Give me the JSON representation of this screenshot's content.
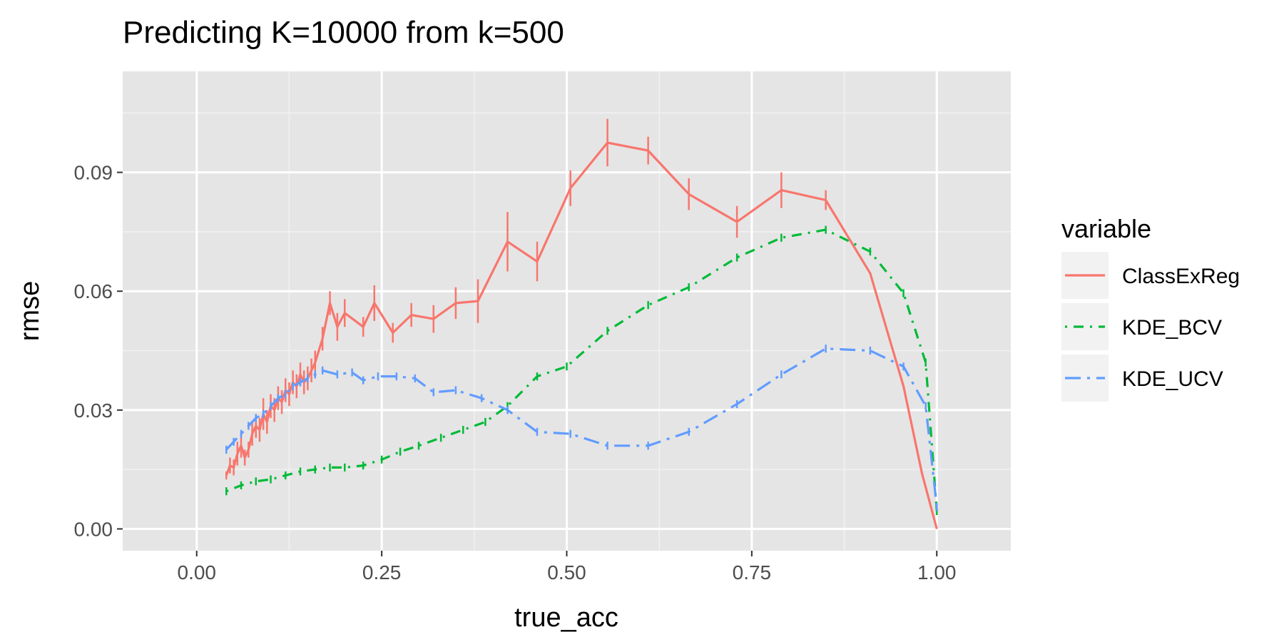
{
  "chart_data": {
    "type": "line",
    "title": "Predicting K=10000 from k=500",
    "xlabel": "true_acc",
    "ylabel": "rmse",
    "xlim": [
      -0.1,
      1.1
    ],
    "ylim": [
      -0.0055,
      0.1155
    ],
    "x_ticks": [
      0.0,
      0.25,
      0.5,
      0.75,
      1.0
    ],
    "x_tick_labels": [
      "0.00",
      "0.25",
      "0.50",
      "0.75",
      "1.00"
    ],
    "y_ticks": [
      0.0,
      0.03,
      0.06,
      0.09
    ],
    "y_tick_labels": [
      "0.00",
      "0.03",
      "0.06",
      "0.09"
    ],
    "grid": true,
    "background": "#e5e5e5",
    "legend": {
      "title": "variable",
      "position": "right"
    },
    "series": [
      {
        "name": "ClassExReg",
        "color": "#f8766d",
        "dash": "solid",
        "x": [
          0.04,
          0.045,
          0.05,
          0.055,
          0.06,
          0.065,
          0.07,
          0.075,
          0.08,
          0.085,
          0.09,
          0.095,
          0.1,
          0.105,
          0.11,
          0.115,
          0.12,
          0.125,
          0.13,
          0.135,
          0.14,
          0.145,
          0.15,
          0.155,
          0.16,
          0.17,
          0.18,
          0.19,
          0.2,
          0.225,
          0.24,
          0.265,
          0.29,
          0.32,
          0.35,
          0.38,
          0.42,
          0.46,
          0.505,
          0.555,
          0.61,
          0.665,
          0.73,
          0.79,
          0.85,
          0.91,
          0.955,
          0.98,
          1.0
        ],
        "y": [
          0.0135,
          0.016,
          0.0155,
          0.019,
          0.021,
          0.018,
          0.02,
          0.024,
          0.026,
          0.025,
          0.029,
          0.027,
          0.031,
          0.03,
          0.033,
          0.032,
          0.035,
          0.034,
          0.037,
          0.036,
          0.039,
          0.037,
          0.038,
          0.04,
          0.042,
          0.048,
          0.057,
          0.051,
          0.0545,
          0.051,
          0.057,
          0.0495,
          0.054,
          0.053,
          0.057,
          0.0575,
          0.0725,
          0.0675,
          0.086,
          0.0975,
          0.0955,
          0.0845,
          0.0775,
          0.0855,
          0.083,
          0.0645,
          0.036,
          0.014,
          0.0
        ],
        "err": [
          0.001,
          0.002,
          0.002,
          0.003,
          0.003,
          0.002,
          0.002,
          0.003,
          0.003,
          0.003,
          0.004,
          0.003,
          0.003,
          0.003,
          0.003,
          0.003,
          0.003,
          0.003,
          0.003,
          0.003,
          0.003,
          0.003,
          0.003,
          0.003,
          0.003,
          0.003,
          0.003,
          0.0035,
          0.0035,
          0.0025,
          0.0045,
          0.0025,
          0.003,
          0.0035,
          0.004,
          0.0055,
          0.0075,
          0.005,
          0.0045,
          0.006,
          0.0035,
          0.004,
          0.004,
          0.0045,
          0.0025,
          0.0,
          0.0,
          0.0,
          0.0
        ]
      },
      {
        "name": "KDE_BCV",
        "color": "#00ba38",
        "dash": "dotdash",
        "x": [
          0.04,
          0.06,
          0.08,
          0.1,
          0.12,
          0.14,
          0.16,
          0.18,
          0.2,
          0.225,
          0.25,
          0.275,
          0.3,
          0.33,
          0.36,
          0.39,
          0.42,
          0.46,
          0.5,
          0.555,
          0.61,
          0.665,
          0.73,
          0.79,
          0.85,
          0.91,
          0.955,
          0.985,
          1.0
        ],
        "y": [
          0.0095,
          0.011,
          0.012,
          0.0125,
          0.0135,
          0.0145,
          0.015,
          0.0155,
          0.0155,
          0.016,
          0.0175,
          0.0195,
          0.021,
          0.023,
          0.025,
          0.027,
          0.031,
          0.0385,
          0.041,
          0.05,
          0.0565,
          0.061,
          0.0685,
          0.0735,
          0.0755,
          0.07,
          0.0595,
          0.042,
          0.0045
        ],
        "err": [
          0.001,
          0.001,
          0.001,
          0.001,
          0.001,
          0.001,
          0.001,
          0.001,
          0.001,
          0.001,
          0.001,
          0.001,
          0.001,
          0.001,
          0.001,
          0.001,
          0.001,
          0.001,
          0.001,
          0.001,
          0.001,
          0.001,
          0.001,
          0.001,
          0.001,
          0.001,
          0.001,
          0.001,
          0.001
        ]
      },
      {
        "name": "KDE_UCV",
        "color": "#619cff",
        "dash": "longdash-dot",
        "x": [
          0.04,
          0.05,
          0.06,
          0.07,
          0.08,
          0.09,
          0.1,
          0.11,
          0.12,
          0.13,
          0.14,
          0.15,
          0.16,
          0.17,
          0.19,
          0.21,
          0.225,
          0.245,
          0.27,
          0.295,
          0.32,
          0.35,
          0.385,
          0.42,
          0.46,
          0.505,
          0.555,
          0.61,
          0.665,
          0.73,
          0.79,
          0.85,
          0.91,
          0.955,
          0.985,
          1.0
        ],
        "y": [
          0.02,
          0.022,
          0.024,
          0.026,
          0.028,
          0.029,
          0.031,
          0.033,
          0.034,
          0.036,
          0.037,
          0.038,
          0.039,
          0.04,
          0.039,
          0.0395,
          0.0375,
          0.0385,
          0.0385,
          0.038,
          0.0345,
          0.035,
          0.033,
          0.03,
          0.0245,
          0.024,
          0.021,
          0.021,
          0.0245,
          0.0315,
          0.039,
          0.0455,
          0.045,
          0.041,
          0.031,
          0.0055
        ],
        "err": [
          0.001,
          0.001,
          0.001,
          0.001,
          0.001,
          0.001,
          0.001,
          0.001,
          0.001,
          0.001,
          0.001,
          0.001,
          0.001,
          0.001,
          0.001,
          0.001,
          0.001,
          0.001,
          0.001,
          0.001,
          0.001,
          0.001,
          0.001,
          0.001,
          0.001,
          0.001,
          0.001,
          0.001,
          0.001,
          0.001,
          0.001,
          0.001,
          0.001,
          0.001,
          0.001,
          0.001
        ]
      }
    ]
  }
}
